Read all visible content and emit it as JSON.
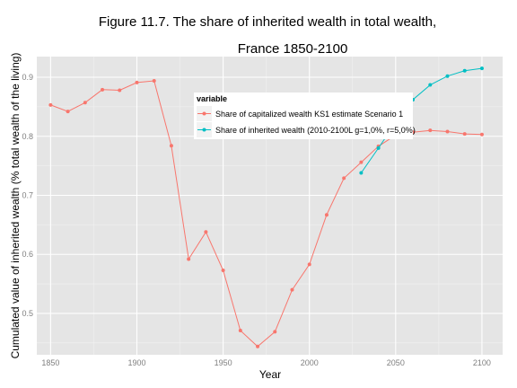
{
  "chart_data": {
    "type": "line",
    "title_lines": [
      "Figure 11.7. The share of inherited wealth in total wealth,",
      "France 1850-2100"
    ],
    "xlabel": "Year",
    "ylabel": "Cumulated value of inherited wealth (% total wealth of the living)",
    "xlim": [
      1842,
      2112
    ],
    "ylim": [
      0.43,
      0.935
    ],
    "x_ticks": [
      1850,
      1900,
      1950,
      2000,
      2050,
      2100
    ],
    "y_ticks": [
      0.5,
      0.6,
      0.7,
      0.8,
      0.9
    ],
    "x_tick_labels": [
      "1850",
      "1900",
      "1950",
      "2000",
      "2050",
      "2100"
    ],
    "y_tick_labels": [
      "0.5",
      "0.6",
      "0.7",
      "0.8",
      "0.9"
    ],
    "grid": true,
    "legend": {
      "title": "variable",
      "placement": "top-center-inside"
    },
    "series": [
      {
        "name": "Share of capitalized wealth KS1 estimate Scenario 1",
        "color": "#f8766d",
        "x": [
          1850,
          1860,
          1870,
          1880,
          1890,
          1900,
          1910,
          1920,
          1930,
          1940,
          1950,
          1960,
          1970,
          1980,
          1990,
          2000,
          2010,
          2020,
          2030,
          2040,
          2050,
          2060,
          2070,
          2080,
          2090,
          2100
        ],
        "y": [
          0.853,
          0.842,
          0.857,
          0.879,
          0.878,
          0.891,
          0.894,
          0.784,
          0.592,
          0.638,
          0.573,
          0.471,
          0.444,
          0.469,
          0.54,
          0.583,
          0.667,
          0.729,
          0.756,
          0.783,
          0.802,
          0.807,
          0.81,
          0.808,
          0.804,
          0.803
        ]
      },
      {
        "name": "Share of inherited wealth (2010-2100L g=1,0%, r=5,0%)",
        "color": "#00bfc4",
        "x": [
          2030,
          2040,
          2050,
          2060,
          2070,
          2080,
          2090,
          2100
        ],
        "y": [
          0.738,
          0.78,
          0.823,
          0.862,
          0.887,
          0.902,
          0.911,
          0.915
        ]
      }
    ]
  }
}
